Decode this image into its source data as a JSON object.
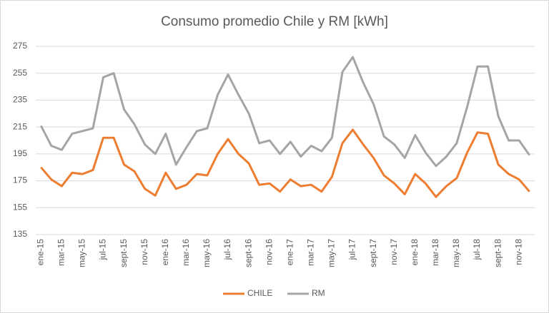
{
  "chart_data": {
    "type": "line",
    "title": "Consumo promedio Chile y RM [kWh]",
    "categories": [
      "ene-15",
      null,
      "mar-15",
      null,
      "may-15",
      null,
      "jul-15",
      null,
      "sept-15",
      null,
      "nov-15",
      null,
      "ene-16",
      null,
      "mar-16",
      null,
      "may-16",
      null,
      "jul-16",
      null,
      "sept-16",
      null,
      "nov-16",
      null,
      "ene-17",
      null,
      "mar-17",
      null,
      "may-17",
      null,
      "jul-17",
      null,
      "sept-17",
      null,
      "nov-17",
      null,
      "ene-18",
      null,
      "mar-18",
      null,
      "may-18",
      null,
      "jul-18",
      null,
      "sept-18",
      null,
      "nov-18",
      null
    ],
    "series": [
      {
        "name": "CHILE",
        "color": "#ed7d31",
        "values": [
          185,
          176,
          171,
          181,
          180,
          183,
          207,
          207,
          187,
          182,
          169,
          164,
          181,
          169,
          172,
          180,
          179,
          195,
          206,
          195,
          188,
          172,
          173,
          167,
          176,
          171,
          172,
          167,
          178,
          203,
          213,
          202,
          192,
          179,
          173,
          165,
          180,
          173,
          163,
          171,
          177,
          196,
          211,
          210,
          187,
          180,
          176,
          167
        ]
      },
      {
        "name": "RM",
        "color": "#a5a5a5",
        "values": [
          216,
          201,
          198,
          210,
          212,
          214,
          252,
          255,
          228,
          217,
          202,
          195,
          210,
          187,
          200,
          212,
          214,
          239,
          254,
          239,
          225,
          203,
          205,
          195,
          204,
          193,
          201,
          197,
          207,
          256,
          267,
          248,
          232,
          208,
          202,
          192,
          209,
          196,
          186,
          193,
          203,
          230,
          260,
          260,
          223,
          205,
          205,
          194
        ]
      }
    ],
    "ylim": [
      135,
      275
    ],
    "yticks": [
      135,
      155,
      175,
      195,
      215,
      235,
      255,
      275
    ],
    "grid": true,
    "legend": "bottom"
  }
}
